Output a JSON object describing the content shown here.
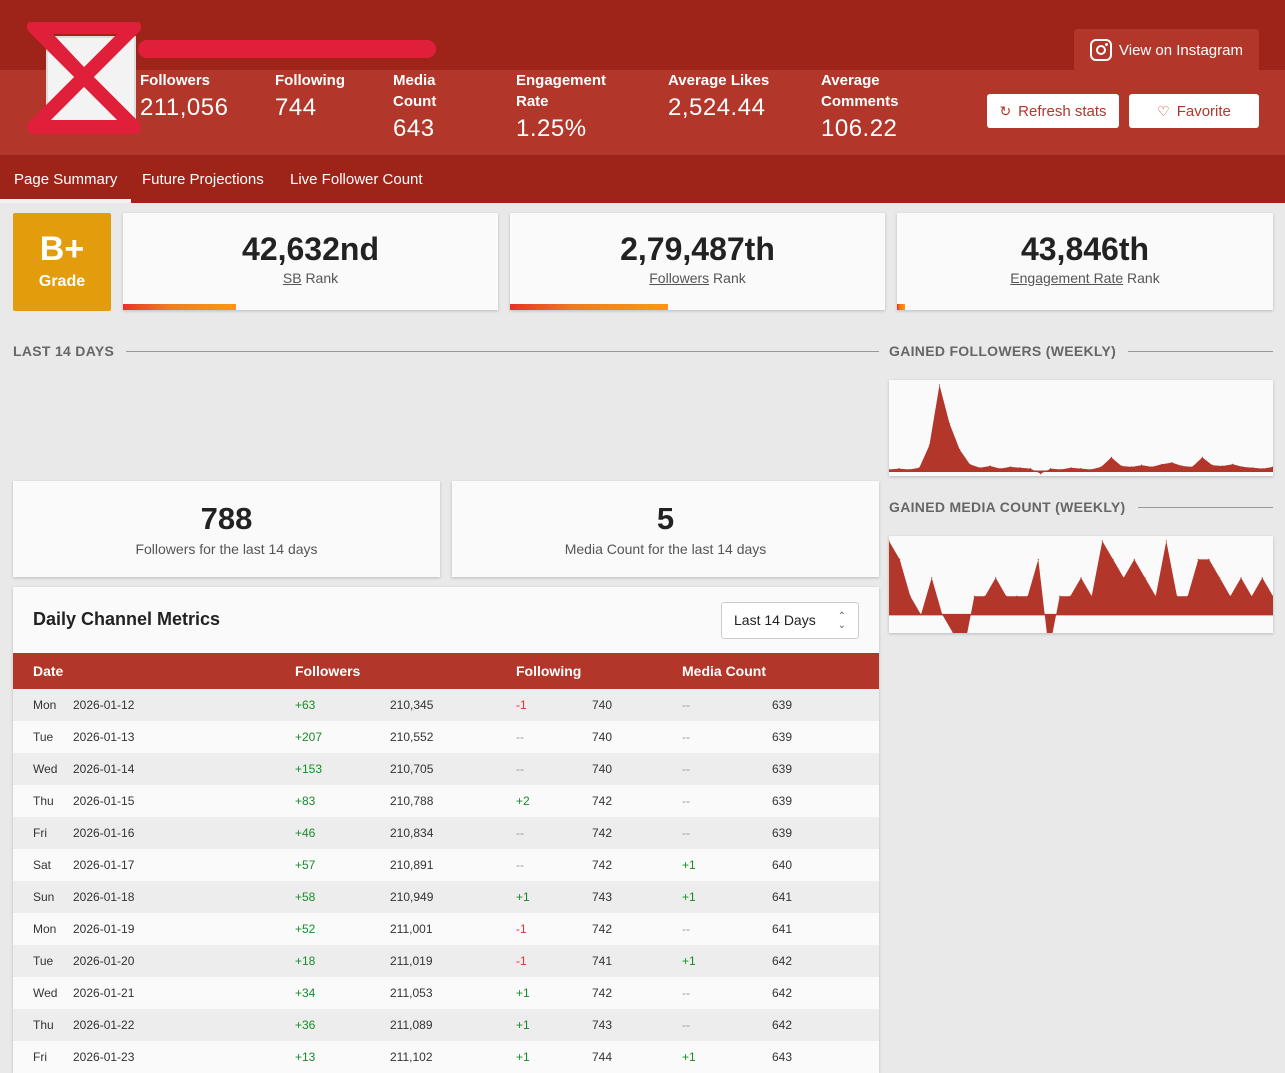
{
  "header": {
    "instagram_button": "View on Instagram",
    "refresh_button": "Refresh stats",
    "favorite_button": "Favorite",
    "stats": [
      {
        "label": "Followers",
        "value": "211,056"
      },
      {
        "label": "Following",
        "value": "744"
      },
      {
        "label": "Media Count",
        "value": "643"
      },
      {
        "label": "Engagement Rate",
        "value": "1.25%"
      },
      {
        "label": "Average Likes",
        "value": "2,524.44"
      },
      {
        "label": "Average Comments",
        "value": "106.22"
      }
    ]
  },
  "tabs": [
    "Page Summary",
    "Future Projections",
    "Live Follower Count"
  ],
  "grade": {
    "value": "B+",
    "label": "Grade"
  },
  "ranks": [
    {
      "value": "42,632nd",
      "link": "SB",
      "suffix": "Rank",
      "progress": 0.3
    },
    {
      "value": "2,79,487th",
      "link": "Followers",
      "suffix": "Rank",
      "progress": 0.42
    },
    {
      "value": "43,846th",
      "link": "Engagement Rate",
      "suffix": "Rank",
      "progress": 0.02
    }
  ],
  "sections": {
    "last14": "LAST 14 DAYS",
    "gained_followers": "GAINED FOLLOWERS (WEEKLY)",
    "gained_media": "GAINED MEDIA COUNT (WEEKLY)"
  },
  "summary": [
    {
      "value": "788",
      "label": "Followers for the last 14 days"
    },
    {
      "value": "5",
      "label": "Media Count for the last 14 days"
    }
  ],
  "table": {
    "title": "Daily Channel Metrics",
    "range_select": "Last 14 Days",
    "headers": [
      "Date",
      "Followers",
      "Following",
      "Media Count"
    ],
    "rows": [
      {
        "day": "Mon",
        "date": "2026-01-12",
        "f_change": "+63",
        "f_total": "210,345",
        "fo_change": "-1",
        "fo_total": "740",
        "m_change": "--",
        "m_total": "639"
      },
      {
        "day": "Tue",
        "date": "2026-01-13",
        "f_change": "+207",
        "f_total": "210,552",
        "fo_change": "--",
        "fo_total": "740",
        "m_change": "--",
        "m_total": "639"
      },
      {
        "day": "Wed",
        "date": "2026-01-14",
        "f_change": "+153",
        "f_total": "210,705",
        "fo_change": "--",
        "fo_total": "740",
        "m_change": "--",
        "m_total": "639"
      },
      {
        "day": "Thu",
        "date": "2026-01-15",
        "f_change": "+83",
        "f_total": "210,788",
        "fo_change": "+2",
        "fo_total": "742",
        "m_change": "--",
        "m_total": "639"
      },
      {
        "day": "Fri",
        "date": "2026-01-16",
        "f_change": "+46",
        "f_total": "210,834",
        "fo_change": "--",
        "fo_total": "742",
        "m_change": "--",
        "m_total": "639"
      },
      {
        "day": "Sat",
        "date": "2026-01-17",
        "f_change": "+57",
        "f_total": "210,891",
        "fo_change": "--",
        "fo_total": "742",
        "m_change": "+1",
        "m_total": "640"
      },
      {
        "day": "Sun",
        "date": "2026-01-18",
        "f_change": "+58",
        "f_total": "210,949",
        "fo_change": "+1",
        "fo_total": "743",
        "m_change": "+1",
        "m_total": "641"
      },
      {
        "day": "Mon",
        "date": "2026-01-19",
        "f_change": "+52",
        "f_total": "211,001",
        "fo_change": "-1",
        "fo_total": "742",
        "m_change": "--",
        "m_total": "641"
      },
      {
        "day": "Tue",
        "date": "2026-01-20",
        "f_change": "+18",
        "f_total": "211,019",
        "fo_change": "-1",
        "fo_total": "741",
        "m_change": "+1",
        "m_total": "642"
      },
      {
        "day": "Wed",
        "date": "2026-01-21",
        "f_change": "+34",
        "f_total": "211,053",
        "fo_change": "+1",
        "fo_total": "742",
        "m_change": "--",
        "m_total": "642"
      },
      {
        "day": "Thu",
        "date": "2026-01-22",
        "f_change": "+36",
        "f_total": "211,089",
        "fo_change": "+1",
        "fo_total": "743",
        "m_change": "--",
        "m_total": "642"
      },
      {
        "day": "Fri",
        "date": "2026-01-23",
        "f_change": "+13",
        "f_total": "211,102",
        "fo_change": "+1",
        "fo_total": "744",
        "m_change": "+1",
        "m_total": "643"
      }
    ]
  },
  "chart_data": [
    {
      "type": "area",
      "title": "GAINED FOLLOWERS (WEEKLY)",
      "values": [
        2,
        3,
        2,
        4,
        30,
        100,
        55,
        25,
        8,
        4,
        6,
        3,
        5,
        4,
        3,
        -3,
        3,
        2,
        4,
        3,
        2,
        5,
        16,
        6,
        5,
        7,
        5,
        8,
        10,
        6,
        5,
        16,
        7,
        6,
        8,
        5,
        4,
        3,
        5
      ],
      "color": "#b3362a"
    },
    {
      "type": "area",
      "title": "GAINED MEDIA COUNT (WEEKLY)",
      "values": [
        4,
        3,
        1,
        0,
        2,
        0,
        -1,
        -2,
        1,
        1,
        2,
        1,
        1,
        1,
        3,
        -2,
        1,
        1,
        2,
        1,
        4,
        3,
        2,
        3,
        2,
        1,
        4,
        1,
        1,
        3,
        3,
        2,
        1,
        2,
        1,
        2,
        1
      ],
      "color": "#b3362a"
    }
  ],
  "colors": {
    "brand": "#b3362a",
    "brand_dark": "#9e2419",
    "grade": "#e39c0c",
    "positive": "#1a8a2a",
    "negative": "#dd3333"
  }
}
